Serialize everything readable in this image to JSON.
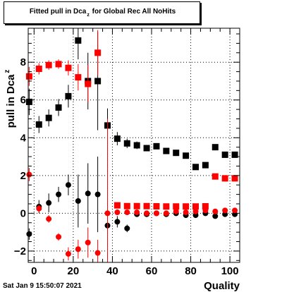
{
  "title": {
    "main": "Fitted pull in Dca",
    "sub": "z",
    "rest": "for Global Rec All NoHits"
  },
  "footer": {
    "timestamp": "Sat Jan  9 15:50:07 2021"
  },
  "chart_data": {
    "type": "scatter",
    "title": "Fitted pull in Dca z for Global Rec All NoHits",
    "xlabel": "Quality",
    "ylabel": "pull in Dca",
    "ylabel_sub": "z",
    "xlim": [
      -3,
      105
    ],
    "ylim": [
      -2.6,
      9.8
    ],
    "x_ticks": [
      0,
      20,
      40,
      60,
      80,
      100
    ],
    "y_ticks": [
      -2,
      0,
      2,
      4,
      6,
      8
    ],
    "grid": true,
    "series": [
      {
        "color": "#000000",
        "marker": "square",
        "points": [
          {
            "x": -2.5,
            "y": 5.9,
            "err": 0.7
          },
          {
            "x": 2.5,
            "y": 4.7,
            "err": 0.45
          },
          {
            "x": 7.5,
            "y": 5.05,
            "err": 0.45
          },
          {
            "x": 12.5,
            "y": 5.6,
            "err": 0.45
          },
          {
            "x": 17.5,
            "y": 6.2,
            "err": 0.6
          },
          {
            "x": 22.5,
            "y": 9.15,
            "err": 1.0
          },
          {
            "x": 27.5,
            "y": 7.0,
            "err": 1.5
          },
          {
            "x": 32.5,
            "y": 7.0,
            "err": 2.6
          },
          {
            "x": 37.5,
            "y": 4.65,
            "err": 0.9
          },
          {
            "x": 42.5,
            "y": 3.95,
            "err": 0.35
          },
          {
            "x": 47.5,
            "y": 3.7,
            "err": 0.25
          },
          {
            "x": 52.5,
            "y": 3.6,
            "err": 0.2
          },
          {
            "x": 57.5,
            "y": 3.45,
            "err": 0.15
          },
          {
            "x": 62.5,
            "y": 3.55,
            "err": 0.12
          },
          {
            "x": 67.5,
            "y": 3.3,
            "err": 0.1
          },
          {
            "x": 72.5,
            "y": 3.2,
            "err": 0.1
          },
          {
            "x": 77.5,
            "y": 3.05,
            "err": 0.1
          },
          {
            "x": 82.5,
            "y": 2.45,
            "err": 0.1
          },
          {
            "x": 87.5,
            "y": 2.55,
            "err": 0.1
          },
          {
            "x": 92.5,
            "y": 3.5,
            "err": 0.1
          },
          {
            "x": 97.5,
            "y": 3.1,
            "err": 0.1
          },
          {
            "x": 102.5,
            "y": 3.1,
            "err": 0.1
          }
        ]
      },
      {
        "color": "#ff0000",
        "marker": "square",
        "points": [
          {
            "x": -2.5,
            "y": 7.25,
            "err": 0.5
          },
          {
            "x": 2.5,
            "y": 7.65,
            "err": 0.3
          },
          {
            "x": 7.5,
            "y": 7.85,
            "err": 0.25
          },
          {
            "x": 12.5,
            "y": 7.9,
            "err": 0.25
          },
          {
            "x": 17.5,
            "y": 7.7,
            "err": 0.4
          },
          {
            "x": 22.5,
            "y": 7.2,
            "err": 0.7
          },
          {
            "x": 27.5,
            "y": 6.85,
            "err": 1.0
          },
          {
            "x": 32.5,
            "y": 8.5,
            "err": 1.2
          },
          {
            "x": 42.5,
            "y": 0.42,
            "err": 0.05
          },
          {
            "x": 47.5,
            "y": 0.38,
            "err": 0.05
          },
          {
            "x": 52.5,
            "y": 0.38,
            "err": 0.05
          },
          {
            "x": 57.5,
            "y": 0.38,
            "err": 0.05
          },
          {
            "x": 62.5,
            "y": 0.37,
            "err": 0.05
          },
          {
            "x": 67.5,
            "y": 0.36,
            "err": 0.05
          },
          {
            "x": 72.5,
            "y": 0.36,
            "err": 0.05
          },
          {
            "x": 77.5,
            "y": 0.36,
            "err": 0.05
          },
          {
            "x": 82.5,
            "y": 0.36,
            "err": 0.05
          },
          {
            "x": 87.5,
            "y": 0.37,
            "err": 0.05
          },
          {
            "x": 92.5,
            "y": 1.95,
            "err": 0.05
          },
          {
            "x": 97.5,
            "y": 1.85,
            "err": 0.05
          },
          {
            "x": 102.5,
            "y": 1.85,
            "err": 0.05
          }
        ]
      },
      {
        "color": "#000000",
        "marker": "circle",
        "points": [
          {
            "x": -2.5,
            "y": -1.1,
            "err": 0.3
          },
          {
            "x": 2.5,
            "y": 0.35,
            "err": 0.35
          },
          {
            "x": 7.5,
            "y": 0.55,
            "err": 0.5
          },
          {
            "x": 12.5,
            "y": 1.0,
            "err": 0.4
          },
          {
            "x": 17.5,
            "y": 1.5,
            "err": 0.55
          },
          {
            "x": 22.5,
            "y": 0.65,
            "err": 1.4
          },
          {
            "x": 27.5,
            "y": 1.05,
            "err": 1.6
          },
          {
            "x": 32.5,
            "y": 1.0,
            "err": 2.0
          },
          {
            "x": 37.5,
            "y": -0.65,
            "err": 0.4
          },
          {
            "x": 42.5,
            "y": -0.45,
            "err": 0.3
          },
          {
            "x": 47.5,
            "y": -0.8,
            "err": 0.2
          },
          {
            "x": 52.5,
            "y": -0.05,
            "err": 0.1
          },
          {
            "x": 57.5,
            "y": -0.05,
            "err": 0.1
          },
          {
            "x": 62.5,
            "y": 0.0,
            "err": 0.1
          },
          {
            "x": 67.5,
            "y": -0.05,
            "err": 0.1
          },
          {
            "x": 72.5,
            "y": 0.0,
            "err": 0.1
          },
          {
            "x": 77.5,
            "y": -0.1,
            "err": 0.05
          },
          {
            "x": 82.5,
            "y": -0.1,
            "err": 0.05
          },
          {
            "x": 87.5,
            "y": 0.0,
            "err": 0.05
          },
          {
            "x": 92.5,
            "y": -0.15,
            "err": 0.05
          },
          {
            "x": 97.5,
            "y": -0.05,
            "err": 0.05
          },
          {
            "x": 102.5,
            "y": -0.05,
            "err": 0.05
          }
        ]
      },
      {
        "color": "#ff0000",
        "marker": "circle",
        "points": [
          {
            "x": -2.5,
            "y": 2.05,
            "err": 0.35
          },
          {
            "x": 2.5,
            "y": 0.25,
            "err": 0.2
          },
          {
            "x": 7.5,
            "y": -0.3,
            "err": 0.2
          },
          {
            "x": 12.5,
            "y": -1.25,
            "err": 0.2
          },
          {
            "x": 17.5,
            "y": -2.15,
            "err": 0.35
          },
          {
            "x": 22.5,
            "y": -1.9,
            "err": 0.5
          },
          {
            "x": 27.5,
            "y": -1.55,
            "err": 0.8
          },
          {
            "x": 32.5,
            "y": -2.1,
            "err": 0.7
          },
          {
            "x": 37.5,
            "y": 0.0,
            "err": 5.0
          },
          {
            "x": 42.5,
            "y": 0.05,
            "err": 0.05
          },
          {
            "x": 47.5,
            "y": 0.05,
            "err": 0.05
          },
          {
            "x": 52.5,
            "y": 0.05,
            "err": 0.05
          },
          {
            "x": 57.5,
            "y": 0.0,
            "err": 0.05
          },
          {
            "x": 62.5,
            "y": 0.0,
            "err": 0.05
          },
          {
            "x": 67.5,
            "y": 0.0,
            "err": 0.05
          },
          {
            "x": 72.5,
            "y": 0.1,
            "err": 0.05
          },
          {
            "x": 77.5,
            "y": 0.05,
            "err": 0.05
          },
          {
            "x": 82.5,
            "y": 0.1,
            "err": 0.05
          },
          {
            "x": 87.5,
            "y": 0.15,
            "err": 0.05
          },
          {
            "x": 92.5,
            "y": 0.1,
            "err": 0.05
          },
          {
            "x": 97.5,
            "y": 0.15,
            "err": 0.05
          },
          {
            "x": 102.5,
            "y": 0.15,
            "err": 0.05
          }
        ]
      }
    ]
  }
}
